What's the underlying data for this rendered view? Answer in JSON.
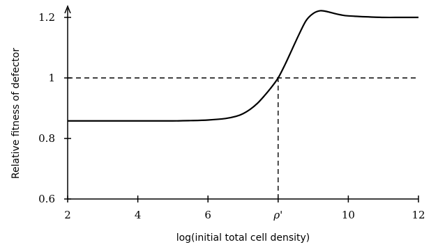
{
  "chart_data": {
    "type": "line",
    "title": "",
    "xlabel": "log(initial total cell density)",
    "ylabel": "Relative fitness of defector",
    "xlim": [
      2,
      12
    ],
    "ylim": [
      0.6,
      1.25
    ],
    "x_ticks": [
      {
        "value": 2,
        "label": "2"
      },
      {
        "value": 4,
        "label": "4"
      },
      {
        "value": 6,
        "label": "6"
      },
      {
        "value": 8,
        "label": "ρ'"
      },
      {
        "value": 10,
        "label": "10"
      },
      {
        "value": 12,
        "label": "12"
      }
    ],
    "y_ticks": [
      {
        "value": 0.6,
        "label": "0.6"
      },
      {
        "value": 0.8,
        "label": "0.8"
      },
      {
        "value": 1.0,
        "label": "1"
      },
      {
        "value": 1.2,
        "label": "1.2"
      }
    ],
    "series": [
      {
        "x": [
          2,
          3,
          4,
          5,
          5.5,
          6,
          6.5,
          6.8,
          7.0,
          7.2,
          7.4,
          7.6,
          7.8,
          8.0,
          8.2,
          8.4,
          8.6,
          8.8,
          9.0,
          9.2,
          9.4,
          9.6,
          9.8,
          10.0,
          10.5,
          11,
          11.5,
          12
        ],
        "y": [
          0.858,
          0.858,
          0.858,
          0.858,
          0.859,
          0.861,
          0.866,
          0.873,
          0.882,
          0.896,
          0.915,
          0.94,
          0.968,
          1.0,
          1.045,
          1.095,
          1.145,
          1.19,
          1.213,
          1.222,
          1.219,
          1.213,
          1.208,
          1.205,
          1.202,
          1.2,
          1.2,
          1.2
        ]
      }
    ],
    "reference_lines": [
      {
        "orientation": "horizontal",
        "value": 1.0,
        "from": 2,
        "to": 12,
        "style": "dashed"
      },
      {
        "orientation": "vertical",
        "value": 8,
        "from": 0.6,
        "to": 1.0,
        "style": "dashed"
      }
    ],
    "grid": false,
    "legend": "none"
  }
}
